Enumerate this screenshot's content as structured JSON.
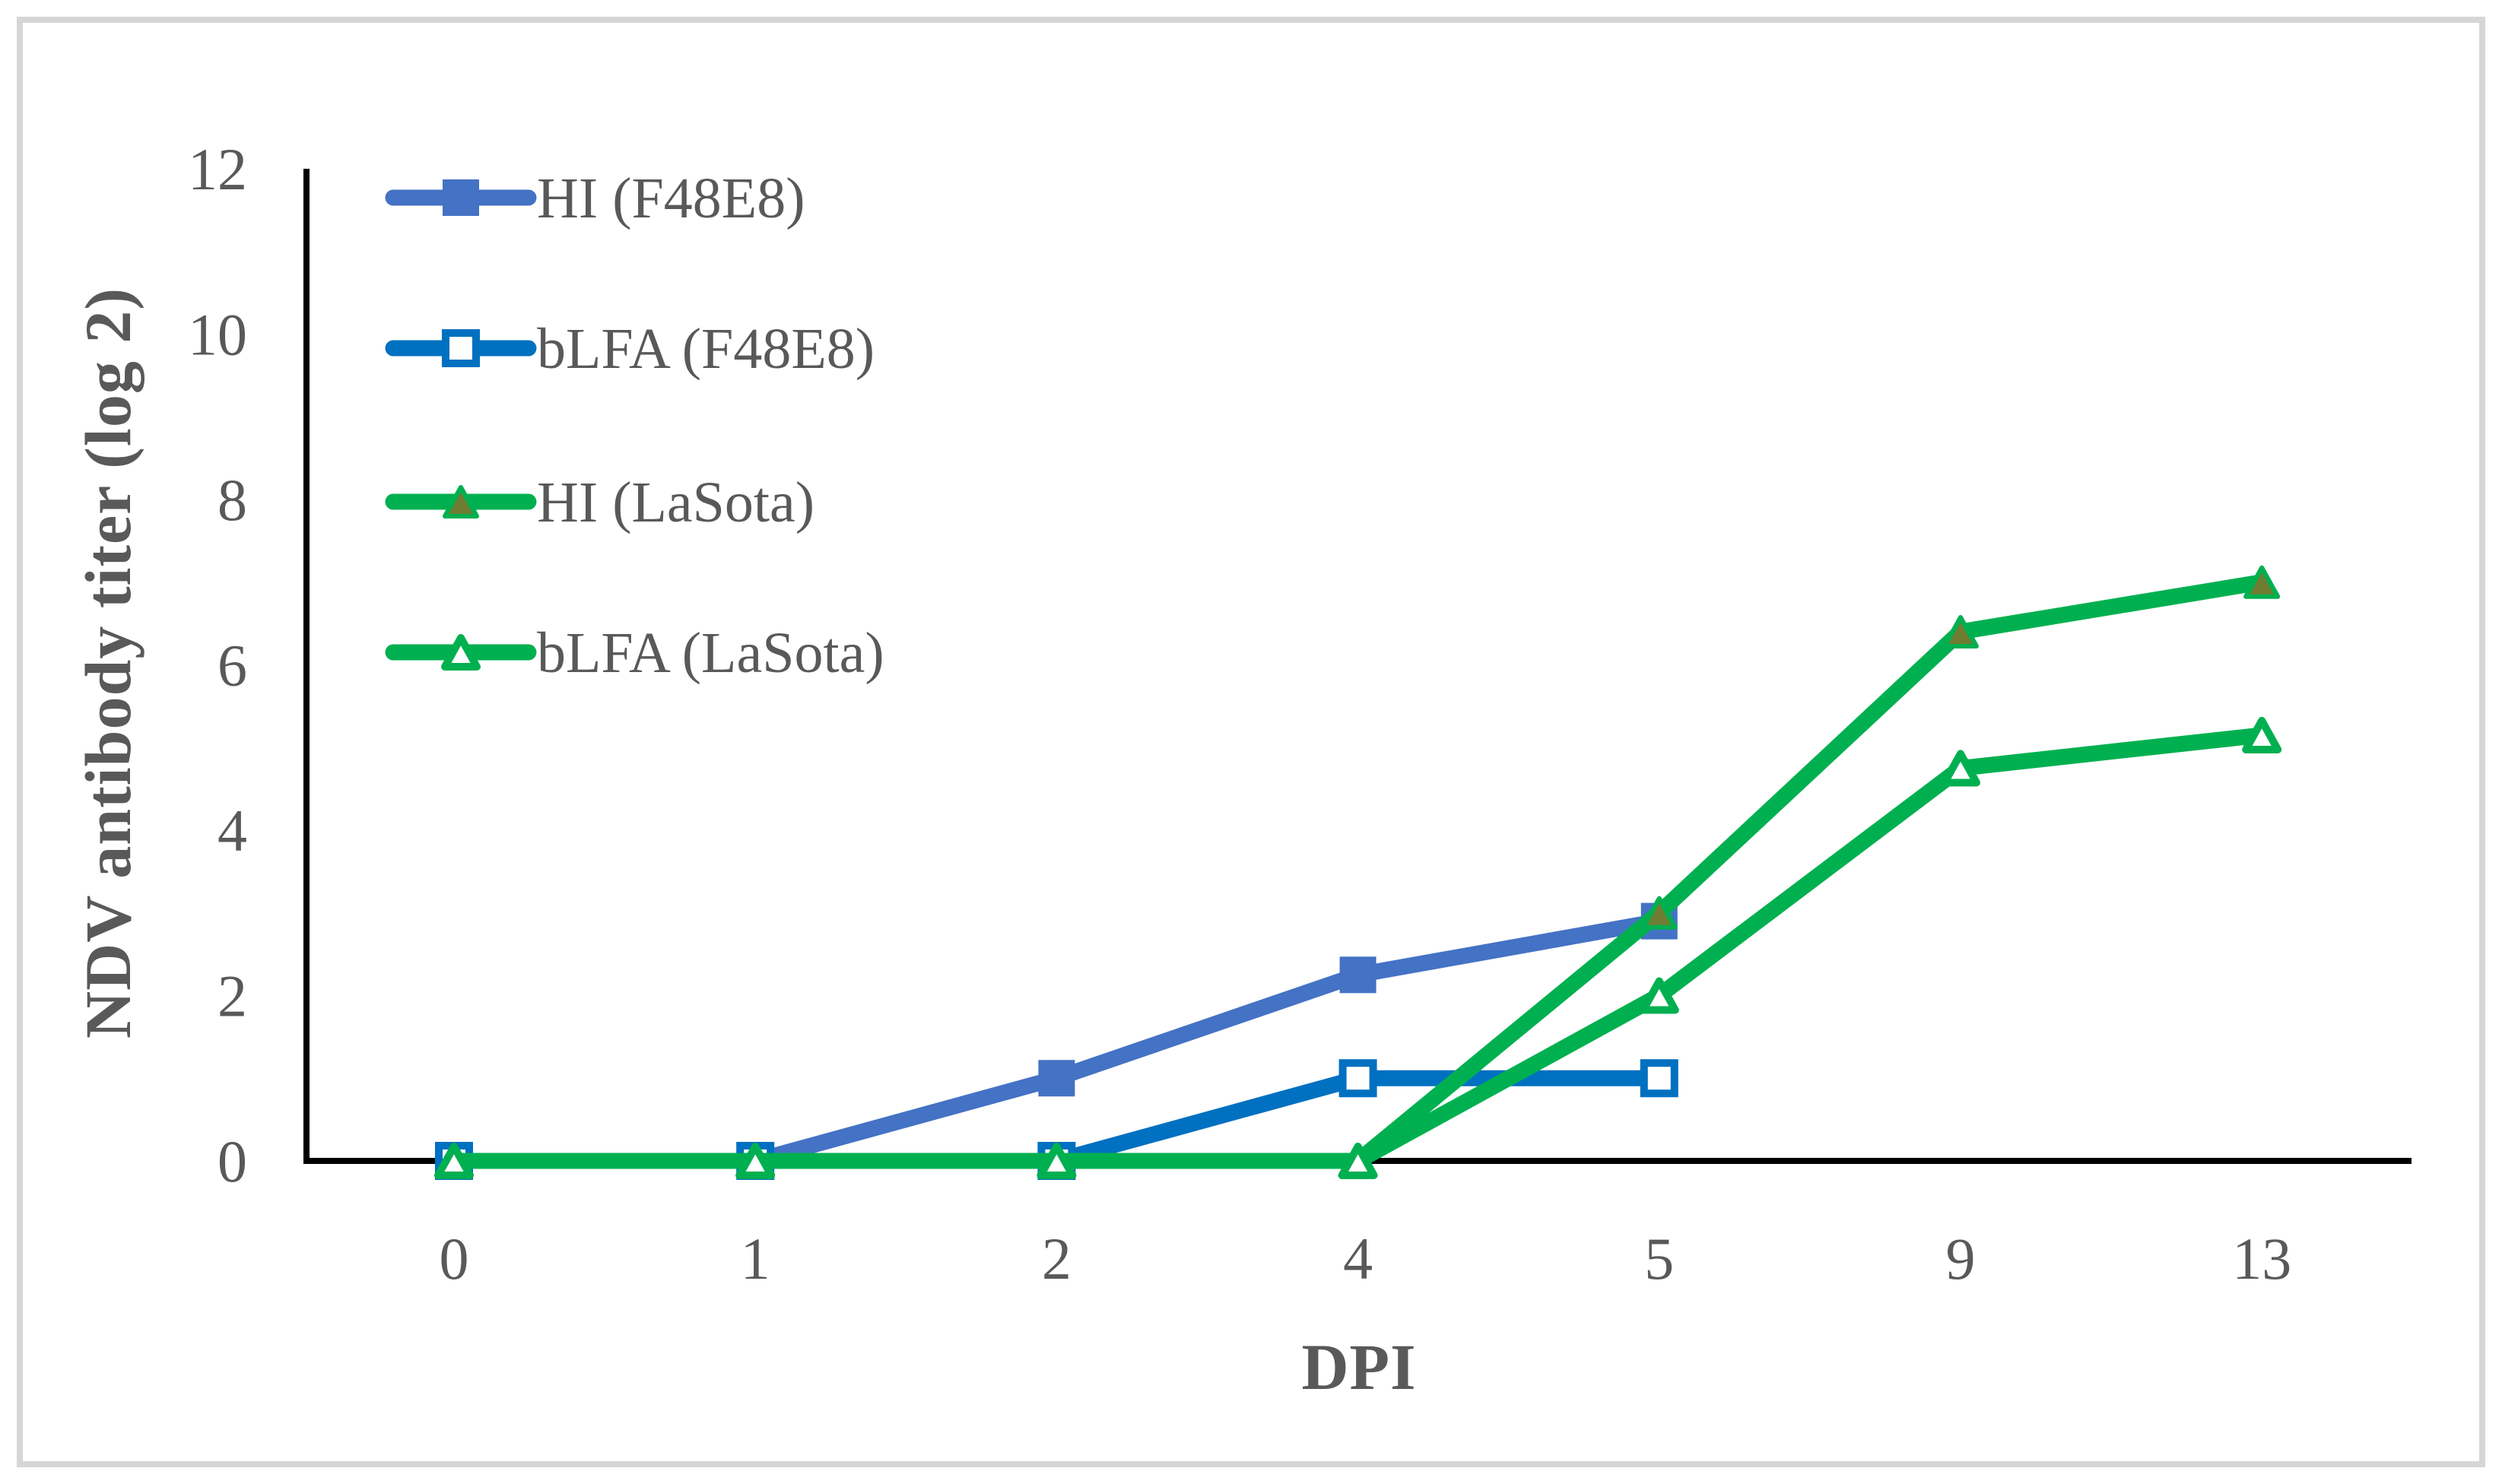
{
  "figure": {
    "background": "#FFFFFF",
    "border_color": "#D6D6D6"
  },
  "chart_data": {
    "type": "line",
    "title": "",
    "xlabel": "DPI",
    "ylabel": "NDV antibody titer (log 2)",
    "categories": [
      "0",
      "1",
      "2",
      "4",
      "5",
      "9",
      "13"
    ],
    "ylim": [
      0,
      12
    ],
    "ytick_step": 2,
    "yticks": [
      "0",
      "2",
      "4",
      "6",
      "8",
      "10",
      "12"
    ],
    "grid": false,
    "legend_position": "upper-left-inside",
    "text_color": "#595959",
    "axis_color": "#000000",
    "series": [
      {
        "name": "HI (F48E8)",
        "color": "#4472C4",
        "marker": "square-filled",
        "marker_fill": "#4472C4",
        "values": [
          0,
          0,
          1,
          2.25,
          2.9,
          null,
          null
        ]
      },
      {
        "name": "bLFA (F48E8)",
        "color": "#0070C0",
        "marker": "square-open",
        "marker_fill": "#FFFFFF",
        "values": [
          0,
          0,
          0,
          1,
          1,
          null,
          null
        ]
      },
      {
        "name": "HI (LaSota)",
        "color": "#00B050",
        "marker": "triangle-filled",
        "marker_fill": "#6E7D32",
        "values": [
          0,
          0,
          0,
          0,
          3,
          6.4,
          7
        ]
      },
      {
        "name": "bLFA (LaSota)",
        "color": "#00B050",
        "marker": "triangle-open",
        "marker_fill": "#FFFFFF",
        "values": [
          0,
          0,
          0,
          0,
          2,
          4.75,
          5.15
        ]
      }
    ]
  }
}
